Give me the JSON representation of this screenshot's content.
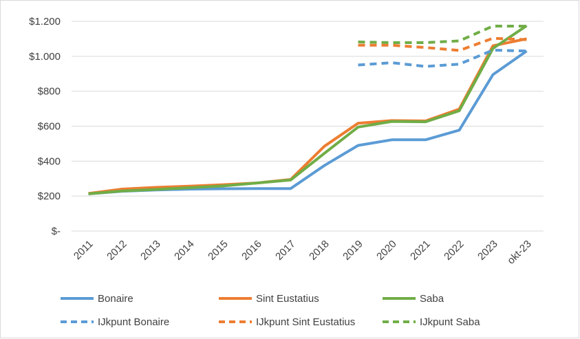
{
  "chart_data": {
    "type": "line",
    "categories": [
      "2011",
      "2012",
      "2013",
      "2014",
      "2015",
      "2016",
      "2017",
      "2018",
      "2019",
      "2020",
      "2021",
      "2022",
      "2023",
      "okt-23"
    ],
    "y_ticks": [
      {
        "value": 0,
        "label": "$-"
      },
      {
        "value": 200,
        "label": "$200"
      },
      {
        "value": 400,
        "label": "$400"
      },
      {
        "value": 600,
        "label": "$600"
      },
      {
        "value": 800,
        "label": "$800"
      },
      {
        "value": 1000,
        "label": "$1.000"
      },
      {
        "value": 1200,
        "label": "$1.200"
      }
    ],
    "ylim": [
      0,
      1200
    ],
    "grid": true,
    "legend_placement": "bottom",
    "series": [
      {
        "name": "Bonaire",
        "color": "#5b9bd5",
        "dashed": false,
        "values": [
          213,
          228,
          235,
          240,
          242,
          243,
          243,
          375,
          490,
          522,
          522,
          577,
          895,
          1030
        ]
      },
      {
        "name": "Sint Eustatius",
        "color": "#ed7d31",
        "dashed": false,
        "values": [
          215,
          240,
          250,
          257,
          265,
          275,
          295,
          485,
          617,
          632,
          630,
          698,
          1060,
          1100
        ]
      },
      {
        "name": "Saba",
        "color": "#70ad47",
        "dashed": false,
        "values": [
          213,
          229,
          238,
          248,
          258,
          275,
          292,
          445,
          595,
          627,
          625,
          688,
          1045,
          1175
        ]
      },
      {
        "name": "IJkpunt Bonaire",
        "color": "#5b9bd5",
        "dashed": true,
        "values": [
          null,
          null,
          null,
          null,
          null,
          null,
          null,
          null,
          950,
          963,
          942,
          955,
          1035,
          1030
        ]
      },
      {
        "name": "IJkpunt Sint Eustatius",
        "color": "#ed7d31",
        "dashed": true,
        "values": [
          null,
          null,
          null,
          null,
          null,
          null,
          null,
          null,
          1063,
          1063,
          1050,
          1033,
          1103,
          1095
        ]
      },
      {
        "name": "IJkpunt Saba",
        "color": "#70ad47",
        "dashed": true,
        "values": [
          null,
          null,
          null,
          null,
          null,
          null,
          null,
          null,
          1082,
          1078,
          1078,
          1088,
          1173,
          1172
        ]
      }
    ]
  }
}
